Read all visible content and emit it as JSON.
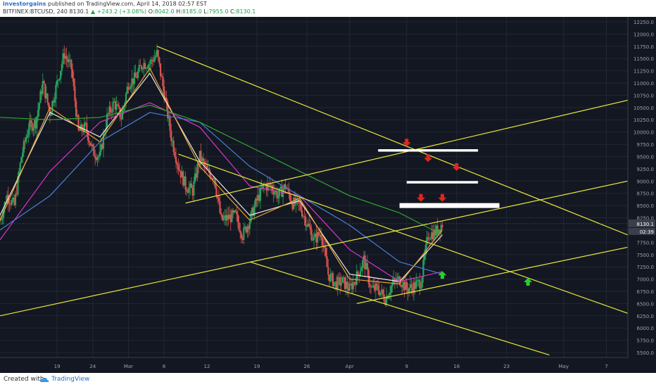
{
  "header": {
    "author": "investorgains",
    "published": "published on TradingView.com, April 14, 2018 02:57 EST",
    "symbol": "BITFINEX:BTCUSD, 240",
    "last": "8130.1",
    "change": "+243.2 (+3.08%)",
    "o_label": "O:",
    "o_value": "8042.0",
    "h_label": "H:",
    "h_value": "8185.0",
    "l_label": "L:",
    "l_value": "7955.0",
    "c_label": "C:",
    "c_value": "8130.1"
  },
  "footer": {
    "created": "Created with",
    "brand": "TradingView"
  },
  "colors": {
    "background": "#131722",
    "grid": "#222733",
    "up": "#26a65b",
    "down": "#d9534f",
    "ma_white": "#e8e8e8",
    "ma_orange": "#f0a030",
    "ma_magenta": "#d535c8",
    "ma_blue": "#4a7fd6",
    "ma_green": "#2fa92f",
    "trendline": "#e8e83a",
    "arrow_down": "#e0261e",
    "arrow_up": "#22d32a",
    "zone": "#ffffff",
    "price_tag": "#3a3f4b"
  },
  "chart_data": {
    "type": "candlestick",
    "instrument": "BITFINEX:BTCUSD",
    "interval": "240",
    "x_ticks": [
      "19",
      "24",
      "Mar",
      "6",
      "12",
      "19",
      "26",
      "Apr",
      "9",
      "16",
      "23",
      "May",
      "7"
    ],
    "y_ticks": [
      "5500.0",
      "5750.0",
      "6000.0",
      "6250.0",
      "6500.0",
      "6750.0",
      "7000.0",
      "7250.0",
      "7500.0",
      "7750.0",
      "8000.0",
      "8250.0",
      "8500.0",
      "8750.0",
      "9000.0",
      "9250.0",
      "9500.0",
      "9750.0",
      "10000.0",
      "10250.0",
      "10500.0",
      "10750.0",
      "11000.0",
      "11250.0",
      "11500.0",
      "11750.0",
      "12000.0",
      "12250.0"
    ],
    "y_range": [
      5400,
      12350
    ],
    "x_range": [
      "Feb 11",
      "May 10"
    ],
    "last_price_label": "8130.1",
    "countdown_label": "02:39",
    "price_path": [
      [
        "Feb 11",
        8200
      ],
      [
        "Feb 12",
        8700
      ],
      [
        "Feb 13",
        8500
      ],
      [
        "Feb 14",
        9500
      ],
      [
        "Feb 15",
        10100
      ],
      [
        "Feb 16",
        10200
      ],
      [
        "Feb 17",
        11000
      ],
      [
        "Feb 18",
        10400
      ],
      [
        "Feb 19",
        11000
      ],
      [
        "Feb 20",
        11600
      ],
      [
        "Feb 21",
        11300
      ],
      [
        "Feb 22",
        10000
      ],
      [
        "Feb 23",
        10100
      ],
      [
        "Feb 24",
        9600
      ],
      [
        "Feb 25",
        9500
      ],
      [
        "Feb 26",
        10300
      ],
      [
        "Feb 27",
        10600
      ],
      [
        "Feb 28",
        10300
      ],
      [
        "Mar 1",
        11000
      ],
      [
        "Mar 2",
        11100
      ],
      [
        "Mar 3",
        11400
      ],
      [
        "Mar 4",
        11400
      ],
      [
        "Mar 5",
        11600
      ],
      [
        "Mar 6",
        10800
      ],
      [
        "Mar 7",
        9900
      ],
      [
        "Mar 8",
        9300
      ],
      [
        "Mar 9",
        8900
      ],
      [
        "Mar 10",
        8800
      ],
      [
        "Mar 11",
        9500
      ],
      [
        "Mar 12",
        9200
      ],
      [
        "Mar 13",
        9100
      ],
      [
        "Mar 14",
        8200
      ],
      [
        "Mar 15",
        8250
      ],
      [
        "Mar 16",
        8300
      ],
      [
        "Mar 17",
        7900
      ],
      [
        "Mar 18",
        8200
      ],
      [
        "Mar 19",
        8600
      ],
      [
        "Mar 20",
        8900
      ],
      [
        "Mar 21",
        8900
      ],
      [
        "Mar 22",
        8700
      ],
      [
        "Mar 23",
        8900
      ],
      [
        "Mar 24",
        8550
      ],
      [
        "Mar 25",
        8500
      ],
      [
        "Mar 26",
        8150
      ],
      [
        "Mar 27",
        7800
      ],
      [
        "Mar 28",
        7950
      ],
      [
        "Mar 29",
        7100
      ],
      [
        "Mar 30",
        6900
      ],
      [
        "Mar 31",
        6950
      ],
      [
        "Apr 1",
        6800
      ],
      [
        "Apr 2",
        7050
      ],
      [
        "Apr 3",
        7400
      ],
      [
        "Apr 4",
        6800
      ],
      [
        "Apr 5",
        6800
      ],
      [
        "Apr 6",
        6600
      ],
      [
        "Apr 7",
        6900
      ],
      [
        "Apr 8",
        7000
      ],
      [
        "Apr 9",
        6800
      ],
      [
        "Apr 10",
        6850
      ],
      [
        "Apr 11",
        6950
      ],
      [
        "Apr 12",
        7900
      ],
      [
        "Apr 13",
        7950
      ],
      [
        "Apr 14",
        8130.1
      ]
    ],
    "moving_averages": [
      {
        "color_key": "ma_white",
        "path": [
          [
            "Feb 11",
            8300
          ],
          [
            "Feb 18",
            10400
          ],
          [
            "Feb 25",
            9900
          ],
          [
            "Mar 4",
            11200
          ],
          [
            "Mar 11",
            9400
          ],
          [
            "Mar 18",
            8300
          ],
          [
            "Mar 25",
            8600
          ],
          [
            "Apr 1",
            7100
          ],
          [
            "Apr 8",
            6950
          ],
          [
            "Apr 14",
            7900
          ]
        ]
      },
      {
        "color_key": "ma_orange",
        "path": [
          [
            "Feb 11",
            8200
          ],
          [
            "Feb 18",
            10500
          ],
          [
            "Feb 25",
            9800
          ],
          [
            "Mar 4",
            11300
          ],
          [
            "Mar 11",
            9300
          ],
          [
            "Mar 18",
            8200
          ],
          [
            "Mar 25",
            8650
          ],
          [
            "Apr 1",
            7000
          ],
          [
            "Apr 8",
            6900
          ],
          [
            "Apr 14",
            8000
          ]
        ]
      },
      {
        "color_key": "ma_magenta",
        "path": [
          [
            "Feb 11",
            7800
          ],
          [
            "Feb 18",
            9200
          ],
          [
            "Feb 25",
            10200
          ],
          [
            "Mar 4",
            10600
          ],
          [
            "Mar 11",
            10100
          ],
          [
            "Mar 18",
            8900
          ],
          [
            "Mar 25",
            8700
          ],
          [
            "Apr 1",
            7600
          ],
          [
            "Apr 8",
            6950
          ],
          [
            "Apr 14",
            7150
          ]
        ]
      },
      {
        "color_key": "ma_blue",
        "path": [
          [
            "Feb 11",
            8000
          ],
          [
            "Feb 18",
            8700
          ],
          [
            "Feb 25",
            9800
          ],
          [
            "Mar 4",
            10400
          ],
          [
            "Mar 11",
            10200
          ],
          [
            "Mar 18",
            9300
          ],
          [
            "Mar 25",
            8700
          ],
          [
            "Apr 1",
            8100
          ],
          [
            "Apr 8",
            7350
          ],
          [
            "Apr 14",
            7100
          ]
        ]
      },
      {
        "color_key": "ma_green",
        "path": [
          [
            "Feb 11",
            10300
          ],
          [
            "Feb 18",
            10250
          ],
          [
            "Feb 25",
            10300
          ],
          [
            "Mar 4",
            10550
          ],
          [
            "Mar 11",
            10200
          ],
          [
            "Mar 18",
            9700
          ],
          [
            "Mar 25",
            9200
          ],
          [
            "Apr 1",
            8700
          ],
          [
            "Apr 8",
            8350
          ],
          [
            "Apr 14",
            7900
          ]
        ]
      }
    ],
    "trendlines": [
      {
        "from": [
          "Mar 5",
          11750
        ],
        "to": [
          "May 10",
          7900
        ]
      },
      {
        "from": [
          "Mar 8",
          9550
        ],
        "to": [
          "May 10",
          6300
        ]
      },
      {
        "from": [
          "Mar 18",
          7350
        ],
        "to": [
          "Apr 29",
          5450
        ]
      },
      {
        "from": [
          "Feb 11",
          6250
        ],
        "to": [
          "May 10",
          9000
        ]
      },
      {
        "from": [
          "Apr 2",
          6500
        ],
        "to": [
          "May 10",
          7650
        ]
      },
      {
        "from": [
          "Mar 9",
          8550
        ],
        "to": [
          "May 10",
          10650
        ]
      }
    ],
    "zones": [
      {
        "from": [
          "Apr 5",
          9650
        ],
        "to": [
          "Apr 19",
          9600
        ]
      },
      {
        "from": [
          "Apr 9",
          9000
        ],
        "to": [
          "Apr 19",
          8950
        ]
      },
      {
        "from": [
          "Apr 8",
          8550
        ],
        "to": [
          "Apr 22",
          8450
        ]
      }
    ],
    "arrows": [
      {
        "direction": "down",
        "at": [
          "Apr 9",
          9750
        ]
      },
      {
        "direction": "down",
        "at": [
          "Apr 12",
          9430
        ]
      },
      {
        "direction": "down",
        "at": [
          "Apr 16",
          9250
        ]
      },
      {
        "direction": "down",
        "at": [
          "Apr 11",
          8620
        ]
      },
      {
        "direction": "down",
        "at": [
          "Apr 14",
          8620
        ]
      },
      {
        "direction": "up",
        "at": [
          "Apr 14",
          7120
        ]
      },
      {
        "direction": "up",
        "at": [
          "Apr 26",
          6980
        ]
      }
    ]
  }
}
